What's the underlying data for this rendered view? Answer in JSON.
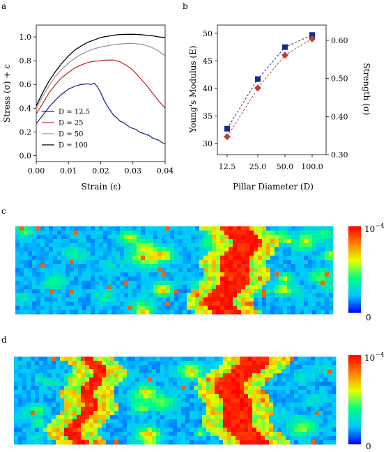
{
  "panels": {
    "a": "a",
    "b": "b",
    "c": "c",
    "d": "d"
  },
  "chart_data": [
    {
      "id": "a",
      "type": "line",
      "xlabel": "Strain (ε)",
      "ylabel": "Stress (σ) + c",
      "xlim": [
        0.0,
        0.04
      ],
      "ylim": [
        -0.05,
        1.1
      ],
      "xticks": [
        "0.00",
        "0.01",
        "0.02",
        "0.03",
        "0.04"
      ],
      "xtick_values": [
        0.0,
        0.01,
        0.02,
        0.03,
        0.04
      ],
      "yticks": [
        "0.0",
        "0.2",
        "0.4",
        "0.6",
        "0.8",
        "1.0"
      ],
      "ytick_values": [
        0.0,
        0.2,
        0.4,
        0.6,
        0.8,
        1.0
      ],
      "legend_position": "bottom-left",
      "grid": false,
      "series": [
        {
          "name": "D = 12.5",
          "color": "#1a2a8c",
          "x": [
            0.0,
            0.002,
            0.004,
            0.006,
            0.008,
            0.01,
            0.012,
            0.014,
            0.016,
            0.017,
            0.018,
            0.019,
            0.02,
            0.021,
            0.022,
            0.023,
            0.024,
            0.025,
            0.026,
            0.027,
            0.028,
            0.029,
            0.03,
            0.031,
            0.032,
            0.033,
            0.034,
            0.035,
            0.036,
            0.037,
            0.038,
            0.039,
            0.04
          ],
          "y": [
            0.27,
            0.34,
            0.41,
            0.47,
            0.52,
            0.56,
            0.585,
            0.6,
            0.605,
            0.6,
            0.61,
            0.58,
            0.53,
            0.47,
            0.42,
            0.38,
            0.34,
            0.32,
            0.29,
            0.28,
            0.26,
            0.24,
            0.23,
            0.22,
            0.2,
            0.19,
            0.18,
            0.17,
            0.15,
            0.14,
            0.13,
            0.11,
            0.1
          ]
        },
        {
          "name": "D = 25",
          "color": "#c0302a",
          "x": [
            0.0,
            0.002,
            0.004,
            0.006,
            0.008,
            0.01,
            0.012,
            0.014,
            0.016,
            0.018,
            0.02,
            0.022,
            0.024,
            0.026,
            0.028,
            0.03,
            0.032,
            0.034,
            0.036,
            0.038,
            0.04
          ],
          "y": [
            0.35,
            0.44,
            0.53,
            0.6,
            0.66,
            0.7,
            0.74,
            0.765,
            0.785,
            0.795,
            0.8,
            0.805,
            0.805,
            0.79,
            0.76,
            0.72,
            0.66,
            0.6,
            0.53,
            0.46,
            0.4
          ]
        },
        {
          "name": "D = 50",
          "color": "#999999",
          "x": [
            0.0,
            0.002,
            0.004,
            0.006,
            0.008,
            0.01,
            0.012,
            0.014,
            0.016,
            0.018,
            0.02,
            0.022,
            0.024,
            0.026,
            0.028,
            0.03,
            0.032,
            0.034,
            0.036,
            0.038,
            0.04
          ],
          "y": [
            0.4,
            0.5,
            0.59,
            0.67,
            0.73,
            0.78,
            0.82,
            0.855,
            0.88,
            0.9,
            0.915,
            0.925,
            0.935,
            0.94,
            0.945,
            0.945,
            0.94,
            0.93,
            0.91,
            0.88,
            0.84
          ]
        },
        {
          "name": "D = 100",
          "color": "#000000",
          "x": [
            0.0,
            0.002,
            0.004,
            0.006,
            0.008,
            0.01,
            0.012,
            0.014,
            0.016,
            0.018,
            0.02,
            0.022,
            0.024,
            0.026,
            0.028,
            0.03,
            0.032,
            0.034,
            0.036,
            0.038,
            0.04
          ],
          "y": [
            0.42,
            0.53,
            0.63,
            0.71,
            0.78,
            0.84,
            0.89,
            0.925,
            0.955,
            0.975,
            0.995,
            1.005,
            1.015,
            1.02,
            1.022,
            1.022,
            1.02,
            1.015,
            1.01,
            1.0,
            0.995
          ]
        }
      ]
    },
    {
      "id": "b",
      "type": "line",
      "xlabel": "Pillar Diameter (D)",
      "ylabel_left": "Young's Modulus (E)",
      "ylabel_right": "Strength (σ)",
      "categories": [
        "12.5",
        "25.0",
        "50.0",
        "100.0"
      ],
      "ylim_left": [
        28,
        51.5
      ],
      "ylim_right": [
        0.3,
        0.64
      ],
      "yticks_left": [
        "30",
        "35",
        "40",
        "45",
        "50"
      ],
      "ytick_values_left": [
        30,
        35,
        40,
        45,
        50
      ],
      "yticks_right": [
        "0.30",
        "0.40",
        "0.50",
        "0.60"
      ],
      "ytick_values_right": [
        0.3,
        0.4,
        0.5,
        0.6
      ],
      "grid": false,
      "series": [
        {
          "axis": "left",
          "marker": "square",
          "color": "#1a2a8c",
          "values": [
            32.7,
            41.7,
            47.5,
            49.7
          ]
        },
        {
          "axis": "right",
          "marker": "diamond",
          "color": "#b8403a",
          "values": [
            0.347,
            0.475,
            0.561,
            0.604
          ]
        }
      ]
    },
    {
      "id": "c",
      "type": "heatmap",
      "colorbar_max": "10",
      "colorbar_max_exp": "−4",
      "colorbar_min": "0",
      "colormap": [
        "#0000ff",
        "#00c8ff",
        "#00ff80",
        "#e6ff00",
        "#ff8000",
        "#ff0000"
      ],
      "band_centers_fraction_of_width": [
        0.68
      ]
    },
    {
      "id": "d",
      "type": "heatmap",
      "colorbar_max": "10",
      "colorbar_max_exp": "−4",
      "colorbar_min": "0",
      "colormap": [
        "#0000ff",
        "#00c8ff",
        "#00ff80",
        "#e6ff00",
        "#ff8000",
        "#ff0000"
      ],
      "band_centers_fraction_of_width": [
        0.22,
        0.7
      ]
    }
  ]
}
